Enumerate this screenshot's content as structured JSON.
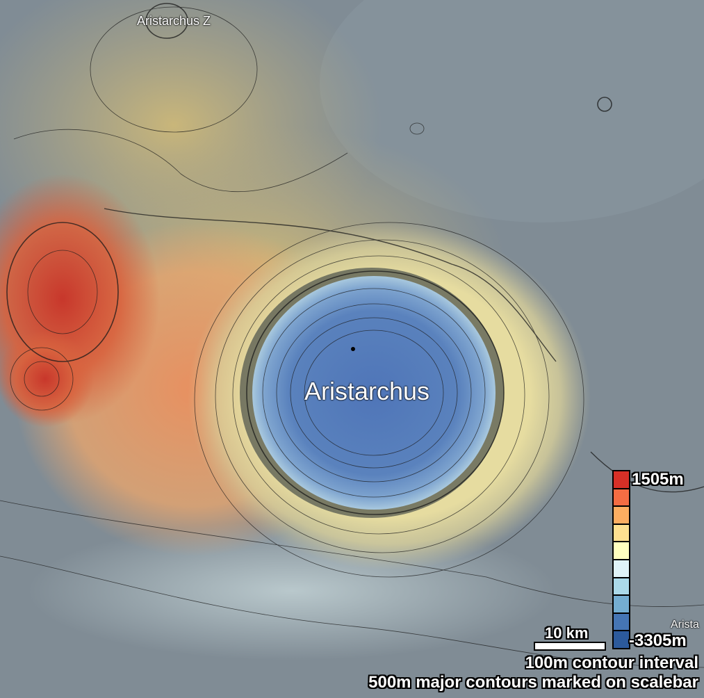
{
  "labels": {
    "crater_main": "Aristarchus",
    "crater_z": "Aristarchus Z",
    "crater_partial": "Arista"
  },
  "legend": {
    "max_label": "1505m",
    "min_label": "-3305m",
    "max_m": 1505,
    "min_m": -3305,
    "colors": [
      "#d73027",
      "#f46d43",
      "#fdae61",
      "#fee090",
      "#ffffbf",
      "#e0f3f8",
      "#abd9e9",
      "#74add1",
      "#4575b4",
      "#2c5a9c"
    ]
  },
  "scalebar": {
    "label": "10 km",
    "length_km": 10
  },
  "notes": {
    "contour_interval": "100m contour interval",
    "major_contours": "500m major contours marked on scalebar"
  }
}
